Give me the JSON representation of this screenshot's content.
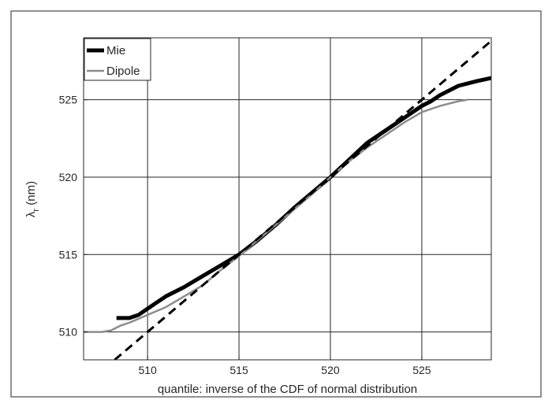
{
  "chart_data": {
    "type": "line",
    "title": "",
    "xlabel": "quantile:  inverse of the CDF of normal distribution",
    "ylabel_main": "λ",
    "ylabel_sub": "r",
    "ylabel_unit": " (nm)",
    "xlim": [
      506.5,
      528.8
    ],
    "ylim": [
      508.2,
      529.0
    ],
    "xticks": [
      510,
      515,
      520,
      525
    ],
    "yticks": [
      510,
      515,
      520,
      525
    ],
    "grid": true,
    "legend_position": "top-left",
    "series": [
      {
        "name": "Mie",
        "color": "#000000",
        "x": [
          508.3,
          509.0,
          509.5,
          510.0,
          510.5,
          511.0,
          512.0,
          513.0,
          514.0,
          515.0,
          516.0,
          517.0,
          518.0,
          519.0,
          520.0,
          521.0,
          522.0,
          523.0,
          524.0,
          525.0,
          525.5,
          526.0,
          527.0,
          528.0,
          528.8
        ],
        "y": [
          510.9,
          510.9,
          511.1,
          511.5,
          511.9,
          512.3,
          512.9,
          513.6,
          514.3,
          515.0,
          515.9,
          516.9,
          518.0,
          519.0,
          520.0,
          521.1,
          522.2,
          523.0,
          523.8,
          524.6,
          524.9,
          525.3,
          525.9,
          526.2,
          526.4
        ]
      },
      {
        "name": "Dipole",
        "color": "#8c8c8c",
        "x": [
          506.5,
          507.5,
          508.0,
          508.5,
          509.0,
          510.0,
          511.0,
          512.0,
          513.0,
          514.0,
          515.0,
          516.0,
          517.0,
          518.0,
          519.0,
          520.0,
          521.0,
          522.0,
          523.0,
          524.0,
          525.0,
          526.0,
          527.0,
          527.5
        ],
        "y": [
          510.0,
          510.0,
          510.1,
          510.4,
          510.6,
          511.1,
          511.6,
          512.3,
          513.0,
          514.0,
          514.9,
          515.9,
          516.9,
          517.9,
          518.9,
          520.0,
          521.0,
          521.9,
          522.7,
          523.5,
          524.2,
          524.6,
          524.9,
          525.0
        ]
      }
    ],
    "reference_line": {
      "style": "dashed",
      "color": "#000000",
      "x": [
        508.2,
        528.8
      ],
      "y": [
        508.2,
        528.8
      ]
    }
  }
}
